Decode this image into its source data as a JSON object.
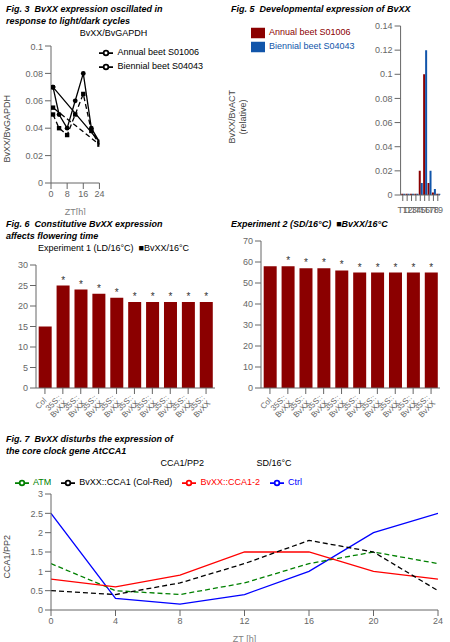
{
  "chart_data": [
    {
      "type": "line",
      "title": "Fig. 3  BvXX expression oscillated in\nresponse to light/dark cycles",
      "subtitle": "BvXX/BvGAPDH",
      "xlabel": "ZT[h]",
      "ylabel": "BvXX/BvGAPDH",
      "x": [
        1,
        4,
        8,
        12,
        16,
        20,
        24,
        1
      ],
      "series": [
        {
          "name": "Annual beet S01006",
          "color": "#000000",
          "marker": "circle",
          "line_style": "solid",
          "values": [
            0.07,
            0.05,
            0.04,
            0.06,
            0.08,
            0.04,
            0.03,
            0.07
          ]
        },
        {
          "name": "Biennial beet S04043",
          "color": "#000000",
          "marker": "square",
          "line_style": "dashed",
          "values": [
            0.05,
            0.04,
            0.035,
            0.05,
            0.065,
            0.038,
            0.028,
            0.055
          ]
        }
      ],
      "xlim": [
        0,
        24
      ],
      "xticks": [
        0,
        4,
        8,
        12,
        16,
        20,
        24
      ],
      "ylim": [
        0,
        0.1
      ],
      "yticks": [
        0,
        0.02,
        0.04,
        0.06,
        0.08,
        0.1
      ],
      "legend": "upper right",
      "grid": false
    },
    {
      "type": "bar",
      "title": "Fig. 5  Developmental expression of BvXX",
      "ylabel": "BvXX/BvACT\n(relative)",
      "categories": [
        "T1",
        "T2",
        "T3",
        "T4",
        "T5",
        "T6",
        "T7",
        "T8",
        "T9"
      ],
      "series": [
        {
          "name": "Annual beet S01006",
          "color": "#8b0000",
          "values": [
            0.001,
            0.001,
            0.001,
            0.001,
            0.02,
            0.1,
            0.01,
            0.002,
            0.001
          ]
        },
        {
          "name": "Biennial beet S04043",
          "color": "#1155aa",
          "values": [
            0.001,
            0.001,
            0.001,
            0.001,
            0.01,
            0.12,
            0.02,
            0.005,
            0.001
          ]
        }
      ],
      "ylim": [
        0,
        0.14
      ],
      "yticks": [
        0,
        0.02,
        0.04,
        0.06,
        0.08,
        0.1,
        0.12,
        0.14
      ],
      "legend": "upper left",
      "grid": false
    },
    {
      "type": "bar",
      "title": "Fig. 6  Constitutive BvXX expression\naffects flowering time",
      "subtitle": "Experiment 1 (LD/16°C)  ■BvXX/16°C",
      "categories": [
        "Col",
        "35S::\nBvXX",
        "35S::\nBvXX",
        "35S::\nBvXX",
        "35S::\nBvXX",
        "35S::\nBvXX",
        "35S::\nBvXX",
        "35S::\nBvXX",
        "35S::\nBvXX",
        "35S::\nBvXX"
      ],
      "values": [
        15,
        25,
        24,
        23,
        22,
        21,
        21,
        21,
        21,
        21
      ],
      "annotations": [
        null,
        "*",
        "*",
        "*",
        "*",
        "*",
        "*",
        "*",
        "*",
        "*"
      ],
      "color": "#8b0000",
      "ylim": [
        0,
        30
      ],
      "yticks": [
        0,
        5,
        10,
        15,
        20,
        25,
        30
      ],
      "grid": false
    },
    {
      "type": "bar",
      "title": "Experiment 2 (SD/16°C)  ■BvXX/16°C",
      "categories": [
        "Col",
        "35S::\nBvXX",
        "35S::\nBvXX",
        "35S::\nBvXX",
        "35S::\nBvXX",
        "35S::\nBvXX",
        "35S::\nBvXX",
        "35S::\nBvXX",
        "35S::\nBvXX",
        "35S::\nBvXX"
      ],
      "values": [
        58,
        58,
        57,
        57,
        56,
        55,
        55,
        55,
        55,
        55
      ],
      "annotations": [
        null,
        "*",
        "*",
        "*",
        "*",
        "*",
        "*",
        "*",
        "*",
        "*"
      ],
      "color": "#8b0000",
      "ylim": [
        0,
        70
      ],
      "yticks": [
        0,
        10,
        20,
        30,
        40,
        50,
        60,
        70
      ],
      "grid": false
    },
    {
      "type": "line",
      "title": "Fig. 7  BvXX disturbs the expression of\nthe core clock gene AtCCA1",
      "subtitle": "CCA1/PP2                     SD/16°C",
      "xlabel": "ZT [h]",
      "ylabel": "CCA1/PP2",
      "x": [
        0,
        4,
        8,
        12,
        16,
        20,
        24
      ],
      "series": [
        {
          "name": "Ctrl",
          "color": "#0000ff",
          "line_style": "solid",
          "values": [
            2.5,
            0.3,
            0.15,
            0.4,
            1.0,
            2.0,
            2.5
          ]
        },
        {
          "name": "ATM",
          "color": "#008000",
          "line_style": "dashed",
          "values": [
            1.2,
            0.5,
            0.4,
            0.7,
            1.2,
            1.5,
            1.2
          ]
        },
        {
          "name": "BvXX::CCA1-2",
          "color": "#ff0000",
          "line_style": "solid",
          "values": [
            0.8,
            0.6,
            0.9,
            1.5,
            1.5,
            1.0,
            0.8
          ]
        },
        {
          "name": "BvXX::CCA1 (Col-Red)",
          "color": "#000000",
          "line_style": "dashed",
          "values": [
            0.5,
            0.4,
            0.7,
            1.2,
            1.8,
            1.5,
            0.5
          ]
        }
      ],
      "xlim": [
        0,
        24
      ],
      "xticks": [
        0,
        4,
        8,
        12,
        16,
        20,
        24
      ],
      "ylim": [
        0,
        3
      ],
      "yticks": [
        0,
        0.5,
        1,
        1.5,
        2,
        2.5,
        3
      ],
      "legend": "upper left",
      "grid": false
    }
  ]
}
